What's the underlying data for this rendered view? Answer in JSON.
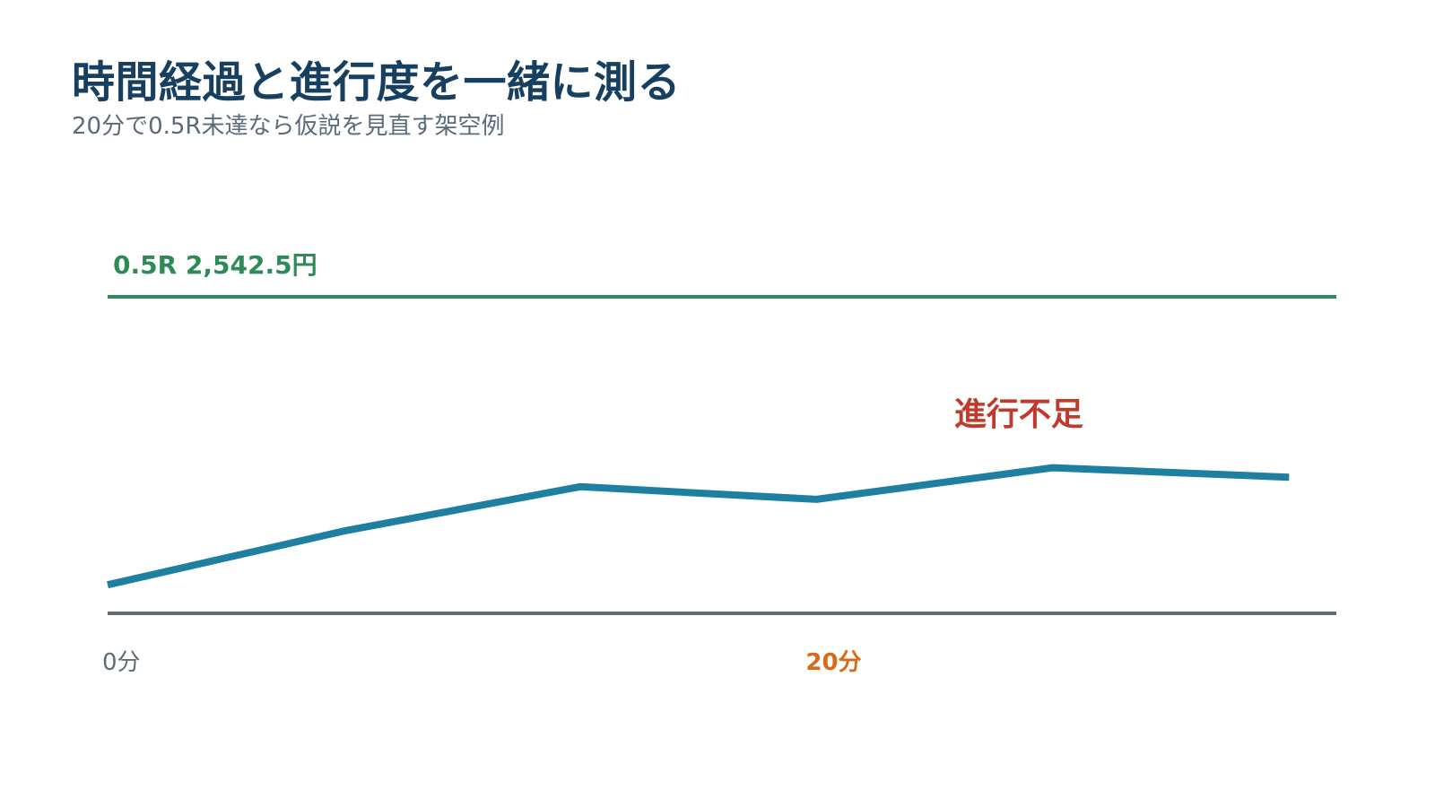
{
  "title": "時間経過と進行度を一緒に測る",
  "subtitle": "20分で0.5R未達なら仮説を見直す架空例",
  "colors": {
    "title": "#173f5f",
    "subtitle": "#5a6b7b",
    "target": "#2e8b57",
    "line": "#1f7fa0",
    "axis": "#5f6b75",
    "checkpoint": "#d96b18",
    "annotation": "#c0392b"
  },
  "chart_data": {
    "type": "line",
    "title": "",
    "xlabel": "",
    "ylabel": "",
    "x": [
      0,
      10,
      20,
      30,
      40,
      50
    ],
    "series": [
      {
        "values": [
          0.09,
          0.26,
          0.4,
          0.36,
          0.46,
          0.43
        ]
      }
    ],
    "x_tick_labels": [
      {
        "x": 0,
        "label": "0分",
        "highlight": false
      },
      {
        "x": 30,
        "label": "20分",
        "highlight": true
      }
    ],
    "target": {
      "value": 1,
      "label": "0.5R  2,542.5円"
    },
    "annotation": {
      "text": "進行不足",
      "x": 40,
      "y": 0.62
    },
    "xlim": [
      0,
      52
    ],
    "ylim": [
      0,
      1
    ],
    "grid": false,
    "legend": false
  }
}
